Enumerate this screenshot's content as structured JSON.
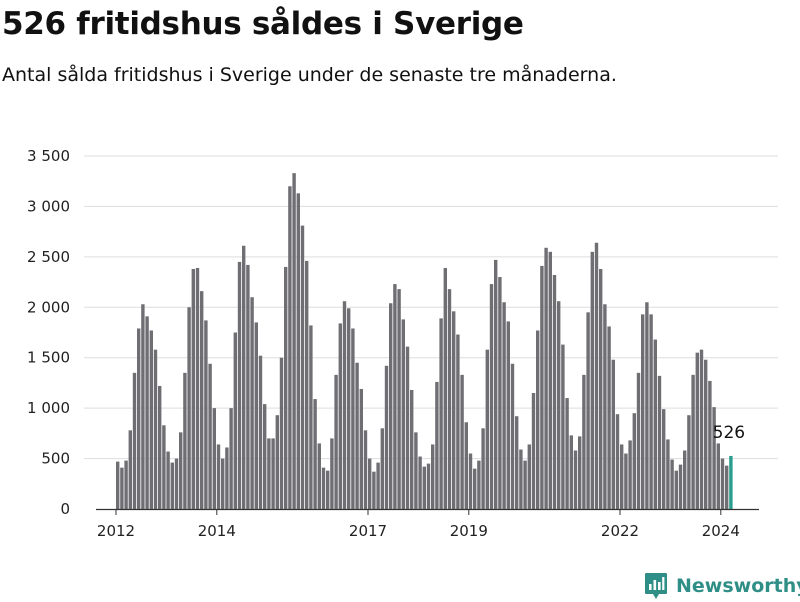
{
  "header": {
    "title": "526 fritidshus såldes i Sverige",
    "subtitle": "Antal sålda fritidshus i Sverige under de senaste tre månaderna."
  },
  "brand": {
    "name": "Newsworthy",
    "color": "#2f8f87",
    "icon": "newsworthy-logo-icon"
  },
  "colors": {
    "bar": "#6f6e73",
    "highlight": "#2a9d8f",
    "grid": "#dddddd",
    "axis": "#333333"
  },
  "chart_data": {
    "type": "bar",
    "title": "",
    "xlabel": "",
    "ylabel": "",
    "ylim": [
      0,
      3500
    ],
    "yticks": [
      0,
      500,
      1000,
      1500,
      2000,
      2500,
      3000,
      3500
    ],
    "ytick_labels": [
      "0",
      "500",
      "1 000",
      "1 500",
      "2 000",
      "2 500",
      "3 000",
      "3 500"
    ],
    "xticks": [
      "2012",
      "2014",
      "2017",
      "2019",
      "2022",
      "2024"
    ],
    "grid": true,
    "legend": "none",
    "annotation": {
      "label": "526",
      "value": 526
    },
    "series": [
      {
        "name": "",
        "values": [
          470,
          410,
          480,
          780,
          1350,
          1790,
          2030,
          1910,
          1770,
          1580,
          1220,
          830,
          570,
          460,
          500,
          760,
          1350,
          2000,
          2380,
          2390,
          2160,
          1870,
          1440,
          1000,
          640,
          500,
          610,
          1000,
          1750,
          2450,
          2610,
          2420,
          2100,
          1850,
          1520,
          1040,
          700,
          700,
          930,
          1500,
          2400,
          3200,
          3330,
          3130,
          2810,
          2460,
          1820,
          1090,
          650,
          410,
          380,
          700,
          1330,
          1840,
          2060,
          1990,
          1790,
          1450,
          1190,
          780,
          500,
          370,
          460,
          800,
          1420,
          2040,
          2230,
          2180,
          1880,
          1610,
          1180,
          760,
          520,
          420,
          450,
          640,
          1260,
          1890,
          2390,
          2180,
          1960,
          1730,
          1330,
          860,
          550,
          400,
          480,
          800,
          1580,
          2230,
          2470,
          2300,
          2050,
          1860,
          1440,
          920,
          590,
          480,
          640,
          1150,
          1770,
          2410,
          2590,
          2550,
          2320,
          2060,
          1630,
          1100,
          730,
          580,
          720,
          1330,
          1950,
          2550,
          2640,
          2380,
          2030,
          1810,
          1480,
          940,
          640,
          550,
          680,
          950,
          1350,
          1930,
          2050,
          1930,
          1680,
          1320,
          990,
          690,
          490,
          380,
          440,
          580,
          930,
          1330,
          1550,
          1580,
          1480,
          1270,
          1010,
          650,
          500,
          430,
          526
        ]
      }
    ]
  }
}
